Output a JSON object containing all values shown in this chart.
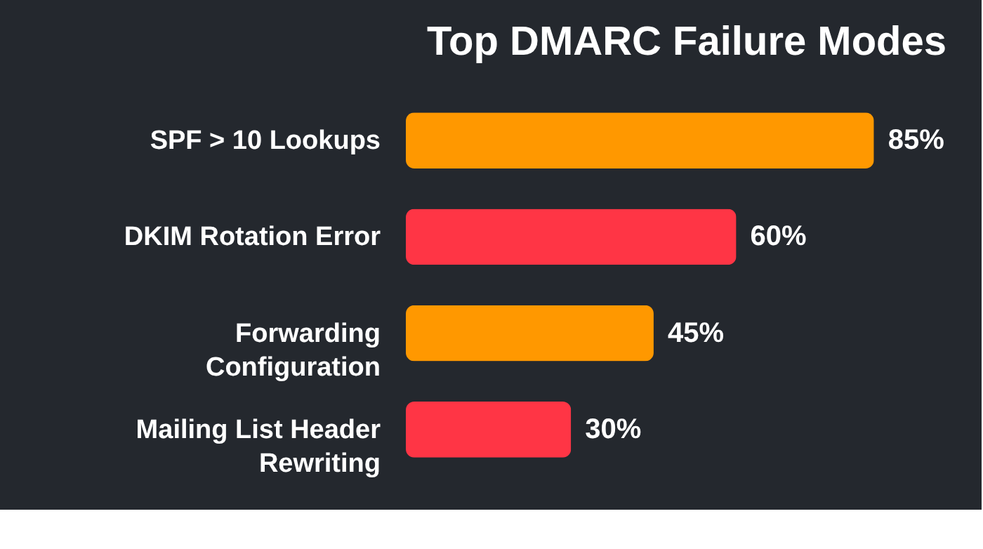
{
  "chart_data": {
    "type": "bar",
    "orientation": "horizontal",
    "title": "Top DMARC Failure Modes",
    "categories": [
      "SPF > 10 Lookups",
      "DKIM Rotation Error",
      "Forwarding Configuration",
      "Mailing List Header Rewriting"
    ],
    "values": [
      85,
      60,
      45,
      30
    ],
    "colors": [
      "#ff9800",
      "#ff3545",
      "#ff9800",
      "#ff3545"
    ],
    "value_labels": [
      "85%",
      "60%",
      "45%",
      "30%"
    ]
  }
}
